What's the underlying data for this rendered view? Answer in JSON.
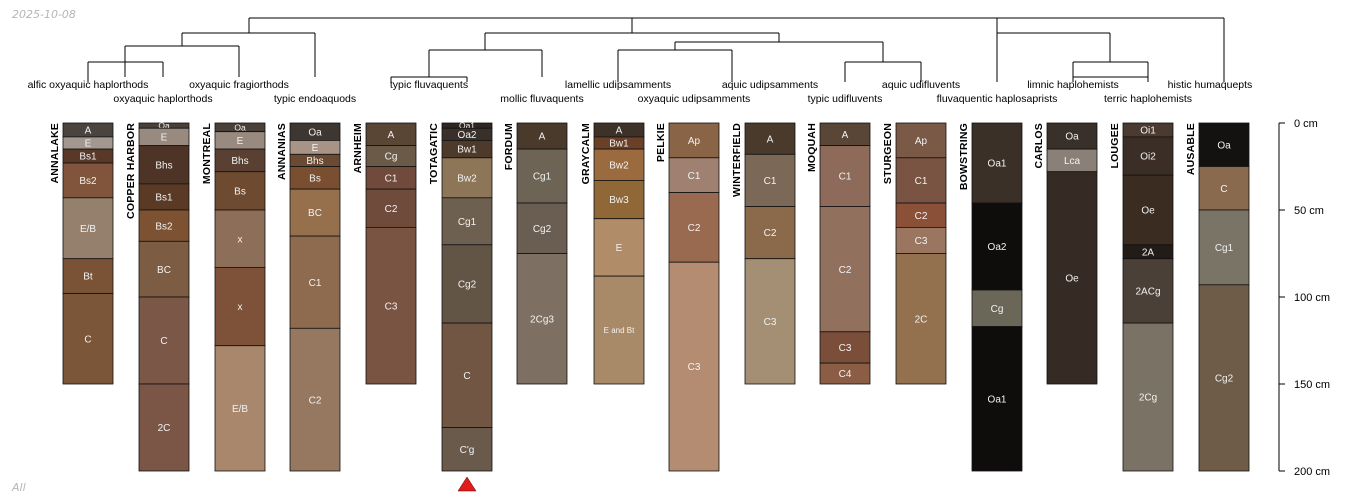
{
  "header": {
    "date": "2025-10-08",
    "subset": "All"
  },
  "chart_data": {
    "type": "soil-profile-sketch",
    "title": "",
    "depth_axis": {
      "unit": "cm",
      "range": [
        0,
        200
      ],
      "ticks": [
        0,
        50,
        100,
        150,
        200
      ],
      "tick_labels": [
        "0 cm",
        "50 cm",
        "100 cm",
        "150 cm",
        "200 cm"
      ]
    },
    "taxa_labels": [
      "alfic oxyaquic haplorthods",
      "oxyaquic haplorthods",
      "oxyaquic fragiorthods",
      "typic endoaquods",
      "typic fluvaquents",
      "mollic fluvaquents",
      "lamellic udipsamments",
      "oxyaquic udipsamments",
      "aquic udipsamments",
      "typic udifluvents",
      "aquic udifluvents",
      "fluvaquentic haplosaprists",
      "limnic haplohemists",
      "terric haplohemists",
      "histic humaquepts"
    ],
    "marker": {
      "profile": "TOTAGATIC",
      "shape": "triangle",
      "color": "#e31a1c"
    },
    "profiles": [
      {
        "name": "ANNALAKE",
        "taxon": "alfic oxyaquic haplorthods",
        "horizons": [
          {
            "name": "A",
            "top": 0,
            "bottom": 8,
            "color": "#4a4440"
          },
          {
            "name": "E",
            "top": 8,
            "bottom": 15,
            "color": "#a39890"
          },
          {
            "name": "Bs1",
            "top": 15,
            "bottom": 23,
            "color": "#5a3828"
          },
          {
            "name": "Bs2",
            "top": 23,
            "bottom": 43,
            "color": "#80553b"
          },
          {
            "name": "E/B",
            "top": 43,
            "bottom": 78,
            "color": "#94806d"
          },
          {
            "name": "Bt",
            "top": 78,
            "bottom": 98,
            "color": "#7a5236"
          },
          {
            "name": "C",
            "top": 98,
            "bottom": 150,
            "color": "#7c5638"
          }
        ]
      },
      {
        "name": "COPPER HARBOR",
        "taxon": "oxyaquic haplorthods",
        "horizons": [
          {
            "name": "Oa",
            "top": 0,
            "bottom": 3,
            "color": "#4a403a"
          },
          {
            "name": "E",
            "top": 3,
            "bottom": 13,
            "color": "#998a80"
          },
          {
            "name": "Bhs",
            "top": 13,
            "bottom": 35,
            "color": "#4d3426"
          },
          {
            "name": "Bs1",
            "top": 35,
            "bottom": 50,
            "color": "#5a3a25"
          },
          {
            "name": "Bs2",
            "top": 50,
            "bottom": 68,
            "color": "#7d5233"
          },
          {
            "name": "BC",
            "top": 68,
            "bottom": 100,
            "color": "#7c5d43"
          },
          {
            "name": "C",
            "top": 100,
            "bottom": 150,
            "color": "#7b5747"
          },
          {
            "name": "2C",
            "top": 150,
            "bottom": 200,
            "color": "#7b5646"
          }
        ]
      },
      {
        "name": "MONTREAL",
        "taxon": "oxyaquic fragiorthods",
        "horizons": [
          {
            "name": "Oa",
            "top": 0,
            "bottom": 5,
            "color": "#4a403a"
          },
          {
            "name": "E",
            "top": 5,
            "bottom": 15,
            "color": "#998a80"
          },
          {
            "name": "Bhs",
            "top": 15,
            "bottom": 28,
            "color": "#5a4032"
          },
          {
            "name": "Bs",
            "top": 28,
            "bottom": 50,
            "color": "#6e4a30"
          },
          {
            "name": "x",
            "top": 50,
            "bottom": 83,
            "color": "#8d6e58"
          },
          {
            "name": "x",
            "top": 83,
            "bottom": 128,
            "color": "#7d5238"
          },
          {
            "name": "E/B",
            "top": 128,
            "bottom": 200,
            "color": "#a8876d"
          }
        ]
      },
      {
        "name": "ANNANIAS",
        "taxon": "typic endoaquods",
        "horizons": [
          {
            "name": "Oa",
            "top": 0,
            "bottom": 10,
            "color": "#3e3630"
          },
          {
            "name": "E",
            "top": 10,
            "bottom": 18,
            "color": "#a89486"
          },
          {
            "name": "Bhs",
            "top": 18,
            "bottom": 25,
            "color": "#6a4a33"
          },
          {
            "name": "Bs",
            "top": 25,
            "bottom": 38,
            "color": "#7a4e30"
          },
          {
            "name": "BC",
            "top": 38,
            "bottom": 65,
            "color": "#96704d"
          },
          {
            "name": "C1",
            "top": 65,
            "bottom": 118,
            "color": "#8e6a4e"
          },
          {
            "name": "C2",
            "top": 118,
            "bottom": 200,
            "color": "#967860"
          }
        ]
      },
      {
        "name": "ARNHEIM",
        "taxon": "typic fluvaquents",
        "horizons": [
          {
            "name": "A",
            "top": 0,
            "bottom": 13,
            "color": "#5a4635"
          },
          {
            "name": "Cg",
            "top": 13,
            "bottom": 25,
            "color": "#6b5a48"
          },
          {
            "name": "C1",
            "top": 25,
            "bottom": 38,
            "color": "#704a3a"
          },
          {
            "name": "C2",
            "top": 38,
            "bottom": 60,
            "color": "#6e4b3b"
          },
          {
            "name": "C3",
            "top": 60,
            "bottom": 150,
            "color": "#7a5443"
          }
        ]
      },
      {
        "name": "TOTAGATIC",
        "taxon": "typic fluvaquents",
        "horizons": [
          {
            "name": "Oa1",
            "top": 0,
            "bottom": 3,
            "color": "#2e2622"
          },
          {
            "name": "Oa2",
            "top": 3,
            "bottom": 10,
            "color": "#3a302b"
          },
          {
            "name": "Bw1",
            "top": 10,
            "bottom": 20,
            "color": "#4d3a2b"
          },
          {
            "name": "Bw2",
            "top": 20,
            "bottom": 43,
            "color": "#8d7558"
          },
          {
            "name": "Cg1",
            "top": 43,
            "bottom": 70,
            "color": "#6e6050"
          },
          {
            "name": "Cg2",
            "top": 70,
            "bottom": 115,
            "color": "#625546"
          },
          {
            "name": "C",
            "top": 115,
            "bottom": 175,
            "color": "#705643"
          },
          {
            "name": "C'g",
            "top": 175,
            "bottom": 200,
            "color": "#6a5a4c"
          }
        ]
      },
      {
        "name": "FORDUM",
        "taxon": "mollic fluvaquents",
        "horizons": [
          {
            "name": "A",
            "top": 0,
            "bottom": 15,
            "color": "#4a3a2c"
          },
          {
            "name": "Cg1",
            "top": 15,
            "bottom": 46,
            "color": "#6e6455"
          },
          {
            "name": "Cg2",
            "top": 46,
            "bottom": 75,
            "color": "#6a5e52"
          },
          {
            "name": "2Cg3",
            "top": 75,
            "bottom": 150,
            "color": "#7d7062"
          }
        ]
      },
      {
        "name": "GRAYCALM",
        "taxon": "lamellic udipsamments",
        "horizons": [
          {
            "name": "A",
            "top": 0,
            "bottom": 8,
            "color": "#3e3228"
          },
          {
            "name": "Bw1",
            "top": 8,
            "bottom": 15,
            "color": "#6a4028"
          },
          {
            "name": "Bw2",
            "top": 15,
            "bottom": 33,
            "color": "#9b6a3e"
          },
          {
            "name": "Bw3",
            "top": 33,
            "bottom": 55,
            "color": "#906838"
          },
          {
            "name": "E",
            "top": 55,
            "bottom": 88,
            "color": "#b08d68"
          },
          {
            "name": "E and Bt",
            "top": 88,
            "bottom": 150,
            "color": "#a88a68"
          }
        ]
      },
      {
        "name": "PELKIE",
        "taxon": "oxyaquic udipsamments",
        "horizons": [
          {
            "name": "Ap",
            "top": 0,
            "bottom": 20,
            "color": "#8a6446"
          },
          {
            "name": "C1",
            "top": 20,
            "bottom": 40,
            "color": "#a08070"
          },
          {
            "name": "C2",
            "top": 40,
            "bottom": 80,
            "color": "#9a6a50"
          },
          {
            "name": "C3",
            "top": 80,
            "bottom": 200,
            "color": "#b38c72"
          }
        ]
      },
      {
        "name": "WINTERFIELD",
        "taxon": "aquic udipsamments",
        "horizons": [
          {
            "name": "A",
            "top": 0,
            "bottom": 18,
            "color": "#4a3a2c"
          },
          {
            "name": "C1",
            "top": 18,
            "bottom": 48,
            "color": "#7c6856"
          },
          {
            "name": "C2",
            "top": 48,
            "bottom": 78,
            "color": "#8a6a4a"
          },
          {
            "name": "C3",
            "top": 78,
            "bottom": 150,
            "color": "#a48e74"
          }
        ]
      },
      {
        "name": "MOQUAH",
        "taxon": "typic udifluvents",
        "horizons": [
          {
            "name": "A",
            "top": 0,
            "bottom": 13,
            "color": "#5a4636"
          },
          {
            "name": "C1",
            "top": 13,
            "bottom": 48,
            "color": "#8e6a5a"
          },
          {
            "name": "C2",
            "top": 48,
            "bottom": 120,
            "color": "#92705e"
          },
          {
            "name": "C3",
            "top": 120,
            "bottom": 138,
            "color": "#7a4e38"
          },
          {
            "name": "C4",
            "top": 138,
            "bottom": 150,
            "color": "#8a5d44"
          }
        ]
      },
      {
        "name": "STURGEON",
        "taxon": "aquic udifluvents",
        "horizons": [
          {
            "name": "Ap",
            "top": 0,
            "bottom": 20,
            "color": "#7a5a46"
          },
          {
            "name": "C1",
            "top": 20,
            "bottom": 46,
            "color": "#7a5443"
          },
          {
            "name": "C2",
            "top": 46,
            "bottom": 60,
            "color": "#8a5038"
          },
          {
            "name": "C3",
            "top": 60,
            "bottom": 75,
            "color": "#9a7560"
          },
          {
            "name": "2C",
            "top": 75,
            "bottom": 150,
            "color": "#93704e"
          }
        ]
      },
      {
        "name": "BOWSTRING",
        "taxon": "fluvaquentic haplosaprists",
        "horizons": [
          {
            "name": "Oa1",
            "top": 0,
            "bottom": 46,
            "color": "#3a3028"
          },
          {
            "name": "Oa2",
            "top": 46,
            "bottom": 96,
            "color": "#0f0d0c"
          },
          {
            "name": "Cg",
            "top": 96,
            "bottom": 117,
            "color": "#6a6658"
          },
          {
            "name": "Oa1",
            "top": 117,
            "bottom": 200,
            "color": "#0f0d0c"
          }
        ]
      },
      {
        "name": "CARLOS",
        "taxon": "limnic haplohemists",
        "horizons": [
          {
            "name": "Oa",
            "top": 0,
            "bottom": 15,
            "color": "#3a302a"
          },
          {
            "name": "Lca",
            "top": 15,
            "bottom": 28,
            "color": "#8a8078"
          },
          {
            "name": "Oe",
            "top": 28,
            "bottom": 150,
            "color": "#352a24"
          }
        ]
      },
      {
        "name": "LOUGEE",
        "taxon": "terric haplohemists",
        "horizons": [
          {
            "name": "Oi1",
            "top": 0,
            "bottom": 8,
            "color": "#4a3a30"
          },
          {
            "name": "Oi2",
            "top": 8,
            "bottom": 30,
            "color": "#3a2e26"
          },
          {
            "name": "Oe",
            "top": 30,
            "bottom": 70,
            "color": "#3a2c20"
          },
          {
            "name": "2A",
            "top": 70,
            "bottom": 78,
            "color": "#221c18"
          },
          {
            "name": "2ACg",
            "top": 78,
            "bottom": 115,
            "color": "#4a4038"
          },
          {
            "name": "2Cg",
            "top": 115,
            "bottom": 200,
            "color": "#7a7265"
          }
        ]
      },
      {
        "name": "AUSABLE",
        "taxon": "histic humaquepts",
        "horizons": [
          {
            "name": "Oa",
            "top": 0,
            "bottom": 25,
            "color": "#141210"
          },
          {
            "name": "C",
            "top": 25,
            "bottom": 50,
            "color": "#8a6a4e"
          },
          {
            "name": "Cg1",
            "top": 50,
            "bottom": 93,
            "color": "#7a7466"
          },
          {
            "name": "Cg2",
            "top": 93,
            "bottom": 200,
            "color": "#6e5c48"
          }
        ]
      }
    ]
  }
}
